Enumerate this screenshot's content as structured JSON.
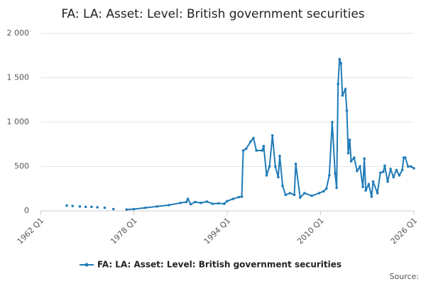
{
  "chart_data": {
    "type": "line",
    "title": "FA: LA: Asset: Level: British government securities",
    "source": "Source:",
    "x": [
      "1966 Q3",
      "1967 Q1",
      "1967 Q3",
      "1968 Q2",
      "1968 Q4",
      "1969 Q2",
      "1969 Q4",
      "1970 Q2",
      "1970 Q4",
      "1971 Q2",
      "1971 Q4",
      "1972 Q2",
      "1973 Q1",
      "1973 Q3",
      "1974 Q3",
      "1975 Q3",
      "1976 Q4",
      "1978 Q1",
      "1980 Q1",
      "1982 Q1",
      "1984 Q1",
      "1986 Q1",
      "1987 Q1",
      "1987 Q2",
      "1987 Q4",
      "1988 Q3",
      "1989 Q3",
      "1990 Q3",
      "1991 Q3",
      "1992 Q3",
      "1993 Q3",
      "1994 Q1",
      "1995 Q1",
      "1996 Q1",
      "1996 Q3",
      "1996 Q4",
      "1997 Q2",
      "1998 Q1",
      "1998 Q3",
      "1999 Q1",
      "2000 Q1",
      "2000 Q2",
      "2000 Q4",
      "2001 Q2",
      "2001 Q4",
      "2002 Q2",
      "2002 Q4",
      "2003 Q1",
      "2003 Q3",
      "2004 Q1",
      "2004 Q4",
      "2005 Q3",
      "2005 Q4",
      "2006 Q3",
      "2007 Q2",
      "2008 Q3",
      "2009 Q4",
      "2010 Q3",
      "2011 Q1",
      "2011 Q3",
      "2012 Q1",
      "2012 Q3",
      "2012 Q4",
      "2013 Q1",
      "2013 Q2",
      "2013 Q3",
      "2013 Q4",
      "2014 Q2",
      "2014 Q3",
      "2014 Q4",
      "2015 Q1",
      "2015 Q2",
      "2015 Q4",
      "2016 Q2",
      "2016 Q4",
      "2017 Q2",
      "2017 Q3",
      "2017 Q4",
      "2018 Q2",
      "2018 Q4",
      "2019 Q1",
      "2019 Q4",
      "2020 Q2",
      "2020 Q4",
      "2021 Q1",
      "2021 Q3",
      "2022 Q1",
      "2022 Q3",
      "2023 Q1",
      "2023 Q3",
      "2024 Q1",
      "2024 Q2",
      "2024 Q3",
      "2025 Q1",
      "2025 Q3",
      "2026 Q1"
    ],
    "series": [
      {
        "name": "FA: LA: Asset: Level: British government securities",
        "color": "#1f7bb8",
        "values": [
          60,
          null,
          55,
          null,
          50,
          null,
          45,
          null,
          45,
          null,
          40,
          null,
          35,
          null,
          20,
          null,
          15,
          20,
          35,
          50,
          65,
          90,
          100,
          135,
          75,
          100,
          90,
          105,
          80,
          85,
          80,
          110,
          135,
          155,
          160,
          680,
          700,
          780,
          820,
          680,
          680,
          730,
          400,
          500,
          850,
          500,
          380,
          620,
          280,
          180,
          200,
          180,
          530,
          150,
          200,
          170,
          200,
          220,
          250,
          400,
          1000,
          420,
          260,
          1430,
          1710,
          1660,
          1300,
          1370,
          1130,
          650,
          800,
          560,
          600,
          450,
          500,
          270,
          590,
          230,
          300,
          160,
          330,
          200,
          430,
          440,
          510,
          330,
          470,
          380,
          460,
          400,
          460,
          600,
          600,
          500,
          500,
          480
        ]
      }
    ],
    "xlim": [
      "1962 Q1",
      "2026 Q1"
    ],
    "xticks": [
      "1962 Q1",
      "1978 Q1",
      "1994 Q1",
      "2010 Q1",
      "2026 Q1"
    ],
    "ylim": [
      0,
      2000
    ],
    "yticks": [
      0,
      500,
      {
        "value": 1000,
        "label": "1 000"
      },
      {
        "value": 1500,
        "label": "1 500"
      },
      {
        "value": 2000,
        "label": "2 000"
      }
    ],
    "grid": true
  }
}
